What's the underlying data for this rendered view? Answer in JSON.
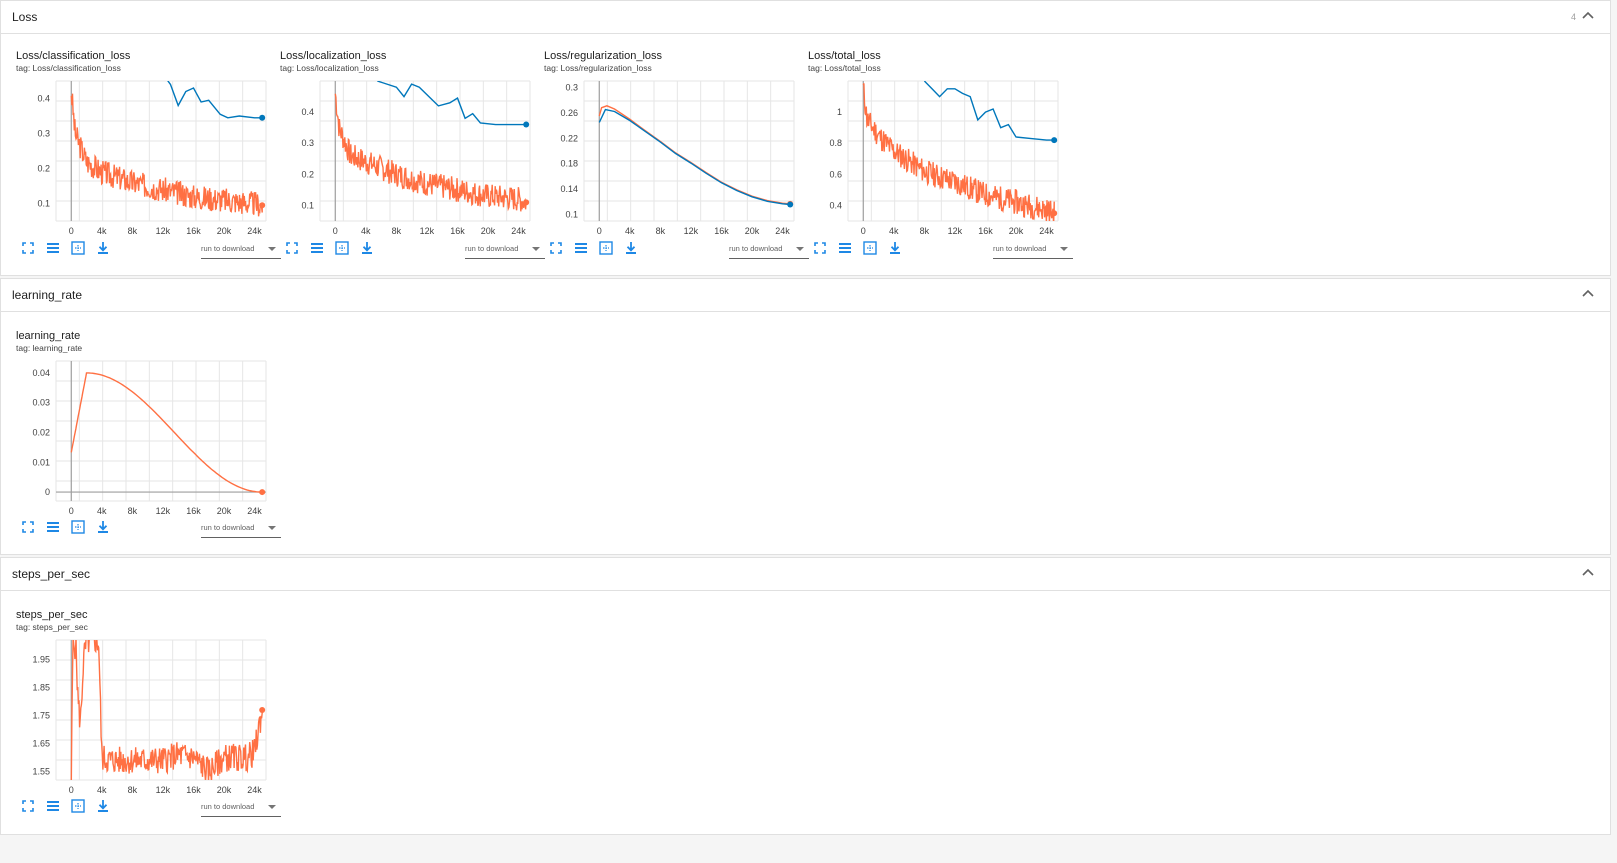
{
  "sections": {
    "loss": {
      "title": "Loss",
      "count": "4"
    },
    "lr": {
      "title": "learning_rate"
    },
    "sps": {
      "title": "steps_per_sec"
    }
  },
  "cards": [
    {
      "id": "cls",
      "title": "Loss/classification_loss",
      "tag": "tag: Loss/classification_loss",
      "download_label": "run to download"
    },
    {
      "id": "loc",
      "title": "Loss/localization_loss",
      "tag": "tag: Loss/localization_loss",
      "download_label": "run to download"
    },
    {
      "id": "reg",
      "title": "Loss/regularization_loss",
      "tag": "tag: Loss/regularization_loss",
      "download_label": "run to download"
    },
    {
      "id": "tot",
      "title": "Loss/total_loss",
      "tag": "tag: Loss/total_loss",
      "download_label": "run to download"
    },
    {
      "id": "lr",
      "title": "learning_rate",
      "tag": "tag: learning_rate",
      "download_label": "run to download"
    },
    {
      "id": "sps",
      "title": "steps_per_sec",
      "tag": "tag: steps_per_sec",
      "download_label": "run to download"
    }
  ],
  "colors": {
    "orange": "#ff7043",
    "blue": "#0077bb",
    "grid": "#e0e0e0",
    "icon": "#1e88e5"
  },
  "icons": [
    "fullscreen-icon",
    "data-list-icon",
    "fit-domain-icon",
    "download-icon"
  ],
  "chart_data": [
    {
      "id": "cls",
      "type": "line",
      "xlim": [
        -2000,
        25500
      ],
      "ylim": [
        0.05,
        0.45
      ],
      "xticks": [
        0,
        4000,
        8000,
        12000,
        16000,
        20000,
        24000
      ],
      "xtick_labels": [
        "0",
        "4k",
        "8k",
        "12k",
        "16k",
        "20k",
        "24k"
      ],
      "yticks": [
        0.1,
        0.2,
        0.3,
        0.4
      ],
      "ytick_labels": [
        "0.1",
        "0.2",
        "0.3",
        "0.4"
      ],
      "series": [
        {
          "color": "blue",
          "points": [
            [
              12000,
              0.47
            ],
            [
              13000,
              0.44
            ],
            [
              14000,
              0.38
            ],
            [
              15000,
              0.42
            ],
            [
              16000,
              0.43
            ],
            [
              17000,
              0.39
            ],
            [
              18000,
              0.395
            ],
            [
              19500,
              0.355
            ],
            [
              20500,
              0.345
            ],
            [
              22000,
              0.35
            ],
            [
              24000,
              0.345
            ],
            [
              25000,
              0.345
            ]
          ]
        },
        {
          "color": "orange",
          "noisy": true,
          "seed": 3,
          "points": [
            [
              0,
              0.42
            ],
            [
              500,
              0.3
            ],
            [
              2000,
              0.22
            ],
            [
              4000,
              0.19
            ],
            [
              8000,
              0.16
            ],
            [
              12000,
              0.14
            ],
            [
              16000,
              0.12
            ],
            [
              20000,
              0.11
            ],
            [
              24000,
              0.1
            ],
            [
              25000,
              0.095
            ]
          ]
        }
      ]
    },
    {
      "id": "loc",
      "type": "line",
      "xlim": [
        -2000,
        25500
      ],
      "ylim": [
        0.05,
        0.5
      ],
      "xticks": [
        0,
        4000,
        8000,
        12000,
        16000,
        20000,
        24000
      ],
      "xtick_labels": [
        "0",
        "4k",
        "8k",
        "12k",
        "16k",
        "20k",
        "24k"
      ],
      "yticks": [
        0.1,
        0.2,
        0.3,
        0.4
      ],
      "ytick_labels": [
        "0.1",
        "0.2",
        "0.3",
        "0.4"
      ],
      "series": [
        {
          "color": "blue",
          "points": [
            [
              5500,
              0.5
            ],
            [
              8000,
              0.48
            ],
            [
              9000,
              0.45
            ],
            [
              10000,
              0.49
            ],
            [
              11000,
              0.48
            ],
            [
              13500,
              0.42
            ],
            [
              15000,
              0.43
            ],
            [
              16000,
              0.445
            ],
            [
              17000,
              0.38
            ],
            [
              18000,
              0.395
            ],
            [
              19000,
              0.365
            ],
            [
              21000,
              0.36
            ],
            [
              23000,
              0.36
            ],
            [
              25000,
              0.36
            ]
          ]
        },
        {
          "color": "orange",
          "noisy": true,
          "seed": 7,
          "points": [
            [
              0,
              0.46
            ],
            [
              500,
              0.35
            ],
            [
              2000,
              0.26
            ],
            [
              4000,
              0.24
            ],
            [
              8000,
              0.2
            ],
            [
              12000,
              0.17
            ],
            [
              16000,
              0.15
            ],
            [
              20000,
              0.13
            ],
            [
              24000,
              0.12
            ],
            [
              25000,
              0.11
            ]
          ]
        }
      ]
    },
    {
      "id": "reg",
      "type": "line",
      "xlim": [
        -2000,
        25500
      ],
      "ylim": [
        0.09,
        0.31
      ],
      "xticks": [
        0,
        4000,
        8000,
        12000,
        16000,
        20000,
        24000
      ],
      "xtick_labels": [
        "0",
        "4k",
        "8k",
        "12k",
        "16k",
        "20k",
        "24k"
      ],
      "yticks": [
        0.1,
        0.14,
        0.18,
        0.22,
        0.26,
        0.3
      ],
      "ytick_labels": [
        "0.1",
        "0.14",
        "0.18",
        "0.22",
        "0.26",
        "0.3"
      ],
      "series": [
        {
          "color": "orange",
          "points": [
            [
              0,
              0.255
            ],
            [
              300,
              0.268
            ],
            [
              1000,
              0.271
            ],
            [
              2000,
              0.266
            ],
            [
              4000,
              0.25
            ],
            [
              6000,
              0.232
            ],
            [
              8000,
              0.215
            ],
            [
              10000,
              0.197
            ],
            [
              12000,
              0.182
            ],
            [
              14000,
              0.166
            ],
            [
              16000,
              0.151
            ],
            [
              18000,
              0.139
            ],
            [
              20000,
              0.129
            ],
            [
              22000,
              0.122
            ],
            [
              24000,
              0.118
            ],
            [
              25000,
              0.117
            ]
          ]
        },
        {
          "color": "blue",
          "points": [
            [
              0,
              0.245
            ],
            [
              800,
              0.265
            ],
            [
              2000,
              0.262
            ],
            [
              4000,
              0.248
            ],
            [
              6000,
              0.231
            ],
            [
              8000,
              0.214
            ],
            [
              10000,
              0.196
            ],
            [
              12000,
              0.181
            ],
            [
              14000,
              0.165
            ],
            [
              16000,
              0.15
            ],
            [
              18000,
              0.138
            ],
            [
              20000,
              0.128
            ],
            [
              22000,
              0.121
            ],
            [
              24000,
              0.117
            ],
            [
              25000,
              0.116
            ]
          ]
        }
      ]
    },
    {
      "id": "tot",
      "type": "line",
      "xlim": [
        -2000,
        25500
      ],
      "ylim": [
        0.3,
        1.2
      ],
      "xticks": [
        0,
        4000,
        8000,
        12000,
        16000,
        20000,
        24000
      ],
      "xtick_labels": [
        "0",
        "4k",
        "8k",
        "12k",
        "16k",
        "20k",
        "24k"
      ],
      "yticks": [
        0.4,
        0.6,
        0.8,
        1
      ],
      "ytick_labels": [
        "0.4",
        "0.6",
        "0.8",
        "1"
      ],
      "series": [
        {
          "color": "blue",
          "points": [
            [
              8000,
              1.2
            ],
            [
              9000,
              1.15
            ],
            [
              10000,
              1.1
            ],
            [
              11000,
              1.15
            ],
            [
              12000,
              1.15
            ],
            [
              13000,
              1.12
            ],
            [
              14000,
              1.1
            ],
            [
              15000,
              0.95
            ],
            [
              16000,
              1.0
            ],
            [
              17000,
              1.02
            ],
            [
              18000,
              0.9
            ],
            [
              19000,
              0.92
            ],
            [
              20000,
              0.84
            ],
            [
              22000,
              0.83
            ],
            [
              24000,
              0.82
            ],
            [
              25000,
              0.82
            ]
          ]
        },
        {
          "color": "orange",
          "noisy": true,
          "seed": 11,
          "points": [
            [
              0,
              1.15
            ],
            [
              500,
              0.95
            ],
            [
              2000,
              0.85
            ],
            [
              4000,
              0.75
            ],
            [
              8000,
              0.62
            ],
            [
              12000,
              0.55
            ],
            [
              16000,
              0.47
            ],
            [
              20000,
              0.42
            ],
            [
              24000,
              0.37
            ],
            [
              25000,
              0.35
            ]
          ]
        }
      ]
    },
    {
      "id": "lr",
      "type": "line",
      "xlim": [
        -2000,
        25500
      ],
      "ylim": [
        -0.003,
        0.044
      ],
      "xticks": [
        0,
        4000,
        8000,
        12000,
        16000,
        20000,
        24000
      ],
      "xtick_labels": [
        "0",
        "4k",
        "8k",
        "12k",
        "16k",
        "20k",
        "24k"
      ],
      "yticks": [
        0,
        0.01,
        0.02,
        0.03,
        0.04
      ],
      "ytick_labels": [
        "0",
        "0.01",
        "0.02",
        "0.03",
        "0.04"
      ],
      "series": [
        {
          "color": "orange",
          "cosine": true,
          "points": [
            [
              0,
              0.0133
            ],
            [
              2000,
              0.04
            ],
            [
              25000,
              0
            ]
          ]
        }
      ]
    },
    {
      "id": "sps",
      "type": "line",
      "xlim": [
        -2000,
        25500
      ],
      "ylim": [
        1.52,
        2.02
      ],
      "xticks": [
        0,
        4000,
        8000,
        12000,
        16000,
        20000,
        24000
      ],
      "xtick_labels": [
        "0",
        "4k",
        "8k",
        "12k",
        "16k",
        "20k",
        "24k"
      ],
      "yticks": [
        1.55,
        1.65,
        1.75,
        1.85,
        1.95
      ],
      "ytick_labels": [
        "1.55",
        "1.65",
        "1.75",
        "1.85",
        "1.95"
      ],
      "series": [
        {
          "color": "orange",
          "noisy": true,
          "seed": 5,
          "amp": 0.05,
          "points": [
            [
              0,
              1.52
            ],
            [
              200,
              2.0
            ],
            [
              600,
              2.0
            ],
            [
              900,
              1.8
            ],
            [
              1200,
              1.72
            ],
            [
              1600,
              1.95
            ],
            [
              2000,
              2.01
            ],
            [
              3000,
              2.02
            ],
            [
              3600,
              2.01
            ],
            [
              4000,
              1.6
            ],
            [
              5000,
              1.59
            ],
            [
              8000,
              1.59
            ],
            [
              12000,
              1.59
            ],
            [
              14000,
              1.61
            ],
            [
              16000,
              1.6
            ],
            [
              18000,
              1.55
            ],
            [
              20000,
              1.6
            ],
            [
              23000,
              1.6
            ],
            [
              24000,
              1.62
            ],
            [
              25000,
              1.77
            ]
          ]
        }
      ]
    }
  ]
}
